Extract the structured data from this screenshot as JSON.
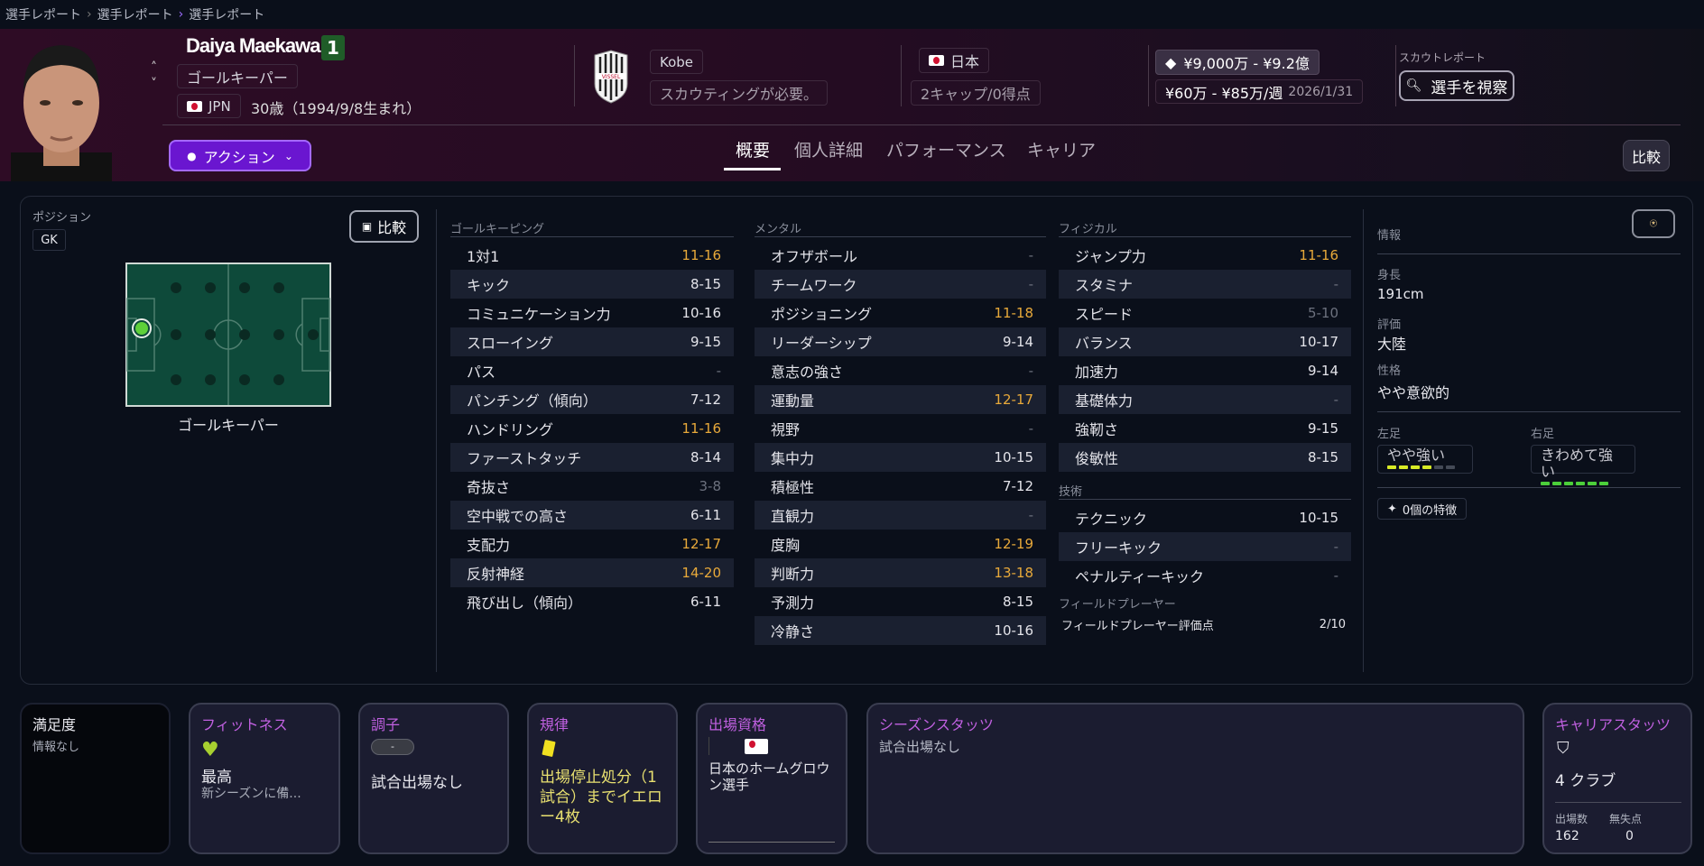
{
  "breadcrumb": [
    "選手レポート",
    "選手レポート",
    "選手レポート"
  ],
  "player": {
    "name": "Daiya Maekawa",
    "number": "1",
    "position": "ゴールキーパー",
    "nation_code": "JPN",
    "age": "30歳（1994/9/8生まれ）"
  },
  "club": {
    "name": "Kobe",
    "scouting": "スカウティングが必要。",
    "crest_text": "VISSEL"
  },
  "nation": {
    "name": "日本",
    "caps": "2キャップ/0得点"
  },
  "contract": {
    "value": "¥9,000万 - ¥9.2億",
    "wage": "¥60万 - ¥85万/週",
    "expiry": "2026/1/31"
  },
  "scout": {
    "label": "スカウトレポート",
    "button": "選手を視察"
  },
  "action_button": "アクション",
  "tabs": [
    "概要",
    "個人詳細",
    "パフォーマンス",
    "キャリア"
  ],
  "compare_label": "比較",
  "position_panel": {
    "label": "ポジション",
    "chip": "GK",
    "compare": "比較",
    "pitch_label": "ゴールキーパー"
  },
  "attributes": {
    "goalkeeping": {
      "title": "ゴールキーピング",
      "rows": [
        {
          "name": "1対1",
          "value": "11-16",
          "tone": "high"
        },
        {
          "name": "キック",
          "value": "8-15",
          "tone": "normal"
        },
        {
          "name": "コミュニケーション力",
          "value": "10-16",
          "tone": "normal"
        },
        {
          "name": "スローイング",
          "value": "9-15",
          "tone": "normal"
        },
        {
          "name": "パス",
          "value": "-",
          "tone": "low"
        },
        {
          "name": "パンチング（傾向）",
          "value": "7-12",
          "tone": "normal"
        },
        {
          "name": "ハンドリング",
          "value": "11-16",
          "tone": "high"
        },
        {
          "name": "ファーストタッチ",
          "value": "8-14",
          "tone": "normal"
        },
        {
          "name": "奇抜さ",
          "value": "3-8",
          "tone": "low"
        },
        {
          "name": "空中戦での高さ",
          "value": "6-11",
          "tone": "normal"
        },
        {
          "name": "支配力",
          "value": "12-17",
          "tone": "high"
        },
        {
          "name": "反射神経",
          "value": "14-20",
          "tone": "high"
        },
        {
          "name": "飛び出し（傾向）",
          "value": "6-11",
          "tone": "normal"
        }
      ]
    },
    "mental": {
      "title": "メンタル",
      "rows": [
        {
          "name": "オフザボール",
          "value": "-",
          "tone": "low"
        },
        {
          "name": "チームワーク",
          "value": "-",
          "tone": "low"
        },
        {
          "name": "ポジショニング",
          "value": "11-18",
          "tone": "high"
        },
        {
          "name": "リーダーシップ",
          "value": "9-14",
          "tone": "normal"
        },
        {
          "name": "意志の強さ",
          "value": "-",
          "tone": "low"
        },
        {
          "name": "運動量",
          "value": "12-17",
          "tone": "high"
        },
        {
          "name": "視野",
          "value": "-",
          "tone": "low"
        },
        {
          "name": "集中力",
          "value": "10-15",
          "tone": "normal"
        },
        {
          "name": "積極性",
          "value": "7-12",
          "tone": "normal"
        },
        {
          "name": "直観力",
          "value": "-",
          "tone": "low"
        },
        {
          "name": "度胸",
          "value": "12-19",
          "tone": "high"
        },
        {
          "name": "判断力",
          "value": "13-18",
          "tone": "high"
        },
        {
          "name": "予測力",
          "value": "8-15",
          "tone": "normal"
        },
        {
          "name": "冷静さ",
          "value": "10-16",
          "tone": "normal"
        }
      ]
    },
    "physical": {
      "title": "フィジカル",
      "rows": [
        {
          "name": "ジャンプ力",
          "value": "11-16",
          "tone": "high"
        },
        {
          "name": "スタミナ",
          "value": "-",
          "tone": "low"
        },
        {
          "name": "スピード",
          "value": "5-10",
          "tone": "low"
        },
        {
          "name": "バランス",
          "value": "10-17",
          "tone": "normal"
        },
        {
          "name": "加速力",
          "value": "9-14",
          "tone": "normal"
        },
        {
          "name": "基礎体力",
          "value": "-",
          "tone": "low"
        },
        {
          "name": "強靭さ",
          "value": "9-15",
          "tone": "normal"
        },
        {
          "name": "俊敏性",
          "value": "8-15",
          "tone": "normal"
        }
      ]
    },
    "technical": {
      "title": "技術",
      "rows": [
        {
          "name": "テクニック",
          "value": "10-15",
          "tone": "normal"
        },
        {
          "name": "フリーキック",
          "value": "-",
          "tone": "low"
        },
        {
          "name": "ペナルティーキック",
          "value": "-",
          "tone": "low"
        }
      ]
    },
    "outfield": {
      "title": "フィールドプレーヤー",
      "label": "フィールドプレーヤー評価点",
      "value": "2/10"
    }
  },
  "info": {
    "title": "情報",
    "height_label": "身長",
    "height": "191cm",
    "reputation_label": "評価",
    "reputation": "大陸",
    "personality_label": "性格",
    "personality": "やや意欲的",
    "left_foot_label": "左足",
    "left_foot": "やや強い",
    "left_foot_level": 4,
    "right_foot_label": "右足",
    "right_foot": "きわめて強い",
    "right_foot_level": 6,
    "foot_level_max": 6,
    "traits": "0個の特徴"
  },
  "cards": {
    "satisfaction": {
      "title": "満足度",
      "text": "情報なし"
    },
    "fitness": {
      "title": "フィットネス",
      "value": "最高",
      "sub": "新シーズンに備..."
    },
    "form": {
      "title": "調子",
      "pill": "-",
      "text": "試合出場なし"
    },
    "discipline": {
      "title": "規律",
      "text": "出場停止処分（1試合）までイエロー4枚"
    },
    "eligibility": {
      "title": "出場資格",
      "text": "日本のホームグロウン選手"
    },
    "season": {
      "title": "シーズンスタッツ",
      "text": "試合出場なし"
    },
    "career": {
      "title": "キャリアスタッツ",
      "clubs": "4 クラブ",
      "apps_label": "出場数",
      "apps": "162",
      "cs_label": "無失点",
      "cs": "0"
    }
  },
  "colors": {
    "accent_purple": "#6a16d0",
    "highlight": "#e8a93a",
    "number_badge": "#1f5c28",
    "card_title": "#c060e0",
    "discipline_text": "#e8e070"
  }
}
